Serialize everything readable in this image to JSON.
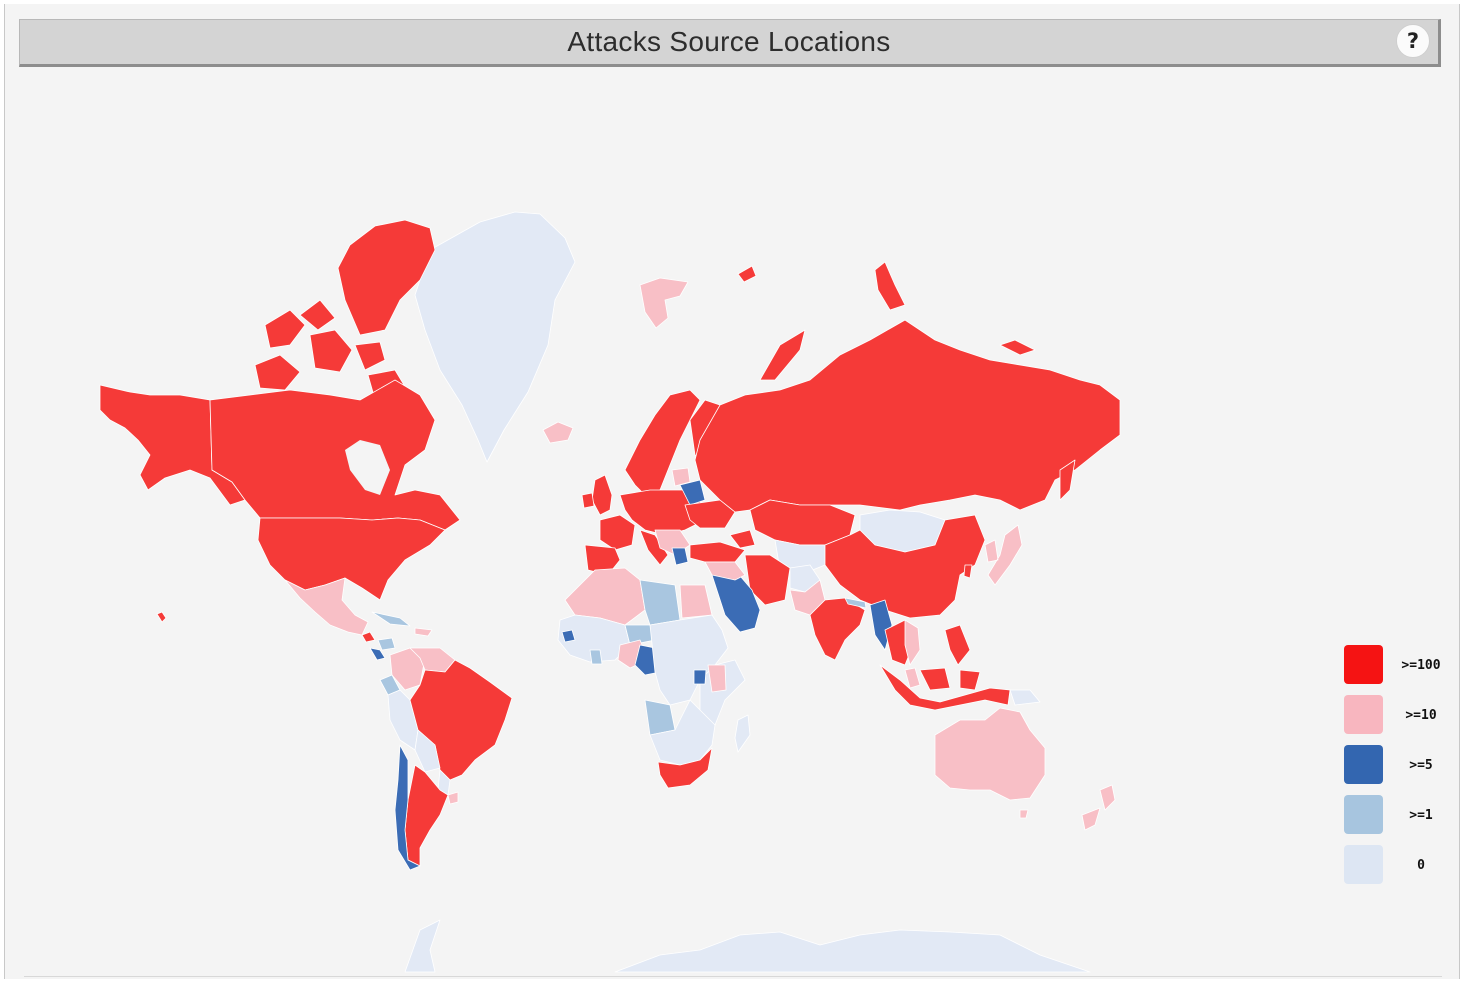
{
  "widget": {
    "title": "Attacks Source Locations",
    "help_label": "?"
  },
  "colors": {
    "high": "#f53a38",
    "medium": "#f8bfc6",
    "low": "#3b6cb5",
    "very_low": "#a9c6e0",
    "none": "#e2e9f5"
  },
  "legend": [
    {
      "label": ">=100",
      "color": "#f51313"
    },
    {
      "label": ">=10",
      "color": "#f8b6bf"
    },
    {
      "label": ">=5",
      "color": "#3366b0"
    },
    {
      "label": ">=1",
      "color": "#a7c5df"
    },
    {
      "label": "0",
      "color": "#dde6f3"
    }
  ]
}
